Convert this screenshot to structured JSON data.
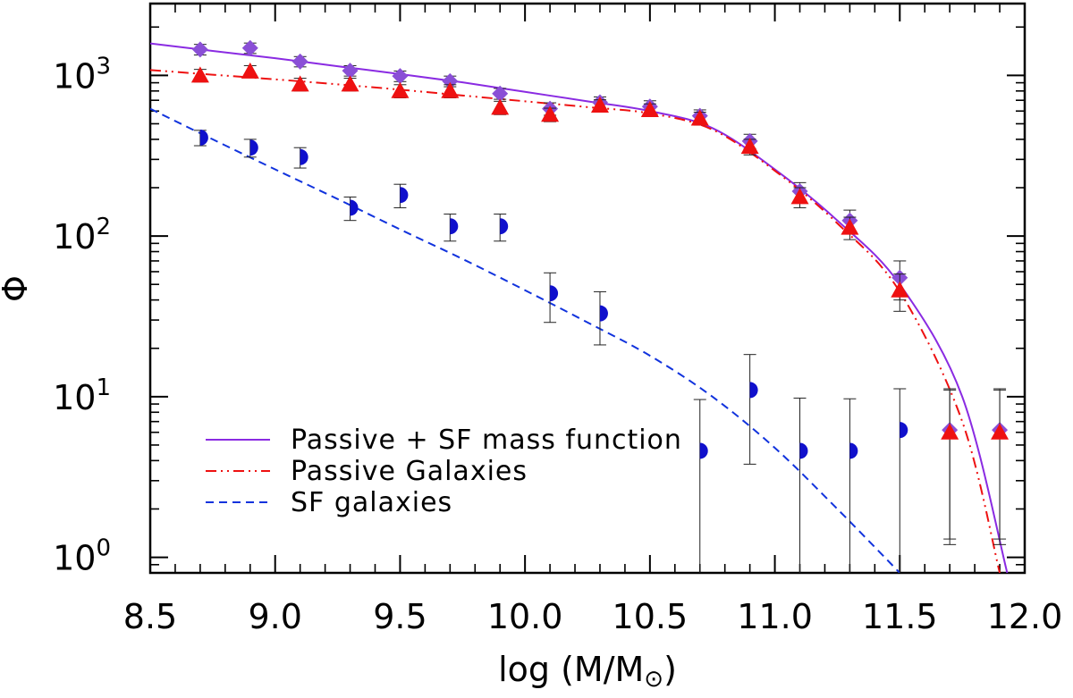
{
  "chart_data": {
    "type": "scatter",
    "title": "",
    "xlabel": "log (M/M",
    "xlabel_symbol": "⊙",
    "xlabel_close": ")",
    "ylabel": "Φ",
    "xlim": [
      8.5,
      12.0
    ],
    "ylim": [
      0.8,
      2800
    ],
    "yscale": "log",
    "x_ticks": [
      "8.5",
      "9.0",
      "9.5",
      "10.0",
      "10.5",
      "11.0",
      "11.5",
      "12.0"
    ],
    "y_ticks": [
      {
        "base": "10",
        "exp": "0"
      },
      {
        "base": "10",
        "exp": "1"
      },
      {
        "base": "10",
        "exp": "2"
      },
      {
        "base": "10",
        "exp": "3"
      }
    ],
    "legend_position": "bottom-left",
    "series": [
      {
        "name": "Passive + SF mass function",
        "kind": "line",
        "dash": "solid",
        "color": "#8a2be2",
        "x": [
          8.5,
          8.75,
          9.0,
          9.25,
          9.5,
          9.75,
          10.0,
          10.25,
          10.5,
          10.75,
          11.0,
          11.25,
          11.5,
          11.75,
          11.93
        ],
        "y": [
          1580,
          1420,
          1280,
          1140,
          1020,
          905,
          790,
          690,
          600,
          470,
          260,
          125,
          50,
          10,
          0.8
        ]
      },
      {
        "name": "Passive Galaxies",
        "kind": "line",
        "dash": "dash-dot-dot",
        "color": "#ee1111",
        "x": [
          8.5,
          8.75,
          9.0,
          9.25,
          9.5,
          9.75,
          10.0,
          10.25,
          10.5,
          10.75,
          11.0,
          11.25,
          11.5,
          11.75,
          11.9
        ],
        "y": [
          1080,
          1010,
          945,
          880,
          815,
          750,
          690,
          635,
          580,
          460,
          255,
          120,
          45,
          7,
          0.8
        ]
      },
      {
        "name": "SF galaxies",
        "kind": "line",
        "dash": "dashed",
        "color": "#1133dd",
        "x": [
          8.5,
          8.75,
          9.0,
          9.25,
          9.5,
          9.75,
          10.0,
          10.25,
          10.5,
          10.75,
          11.0,
          11.25,
          11.5
        ],
        "y": [
          620,
          400,
          260,
          170,
          110,
          72,
          46,
          29,
          18,
          10,
          4.8,
          2.0,
          0.8
        ]
      },
      {
        "name": "",
        "kind": "points",
        "marker": "diamond",
        "color": "#8a4fd6",
        "x": [
          8.7,
          8.9,
          9.1,
          9.3,
          9.5,
          9.7,
          9.9,
          10.1,
          10.3,
          10.5,
          10.7,
          10.9,
          11.1,
          11.3,
          11.5,
          11.7,
          11.9
        ],
        "y": [
          1450,
          1480,
          1220,
          1070,
          990,
          920,
          770,
          620,
          680,
          640,
          560,
          390,
          190,
          125,
          55,
          6.2,
          6.2
        ],
        "err_low": [
          110,
          110,
          90,
          80,
          75,
          70,
          60,
          55,
          55,
          55,
          50,
          40,
          25,
          20,
          15,
          4.9,
          4.9
        ],
        "err_high": [
          110,
          110,
          90,
          80,
          75,
          70,
          60,
          55,
          55,
          55,
          50,
          40,
          25,
          20,
          15,
          5.0,
          5.0
        ]
      },
      {
        "name": "",
        "kind": "points",
        "marker": "triangle",
        "color": "#ee1111",
        "x": [
          8.7,
          8.9,
          9.1,
          9.3,
          9.5,
          9.7,
          9.9,
          10.1,
          10.3,
          10.5,
          10.7,
          10.9,
          11.1,
          11.3,
          11.5,
          11.7,
          11.9
        ],
        "y": [
          1000,
          1060,
          880,
          880,
          800,
          800,
          630,
          570,
          650,
          610,
          540,
          360,
          175,
          113,
          46,
          6.0,
          6.0
        ],
        "err_low": [
          90,
          90,
          80,
          80,
          75,
          75,
          60,
          55,
          55,
          55,
          50,
          40,
          25,
          18,
          12,
          4.8,
          4.8
        ],
        "err_high": [
          90,
          90,
          80,
          80,
          75,
          75,
          60,
          55,
          55,
          55,
          50,
          40,
          25,
          18,
          12,
          5.0,
          5.0
        ]
      },
      {
        "name": "",
        "kind": "points",
        "marker": "half-circle",
        "color": "#1010cc",
        "x": [
          8.7,
          8.9,
          9.1,
          9.3,
          9.5,
          9.7,
          9.9,
          10.1,
          10.3,
          10.7,
          10.9,
          11.1,
          11.3,
          11.5
        ],
        "y": [
          410,
          355,
          310,
          150,
          180,
          115,
          115,
          44,
          33,
          4.6,
          11,
          4.6,
          4.6,
          6.2
        ],
        "err_low": [
          45,
          45,
          45,
          25,
          30,
          22,
          22,
          15,
          12,
          4.6,
          7.2,
          4.6,
          4.6,
          5.5
        ],
        "err_high": [
          45,
          45,
          45,
          25,
          30,
          22,
          22,
          15,
          12,
          5.0,
          7.3,
          5.2,
          5.1,
          5.0
        ]
      }
    ]
  }
}
